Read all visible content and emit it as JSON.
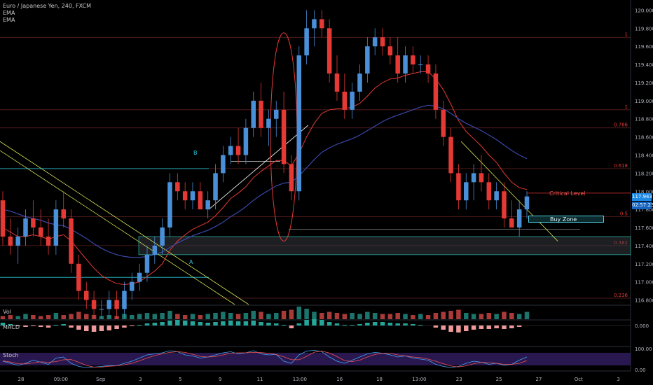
{
  "chart_data": {
    "type": "candlestick",
    "title": "Euro / Japanese Yen, 240, FXCM",
    "indicators": [
      "EMA",
      "EMA"
    ],
    "y_axis_ticks": [
      "120.000",
      "119.800",
      "119.600",
      "119.400",
      "119.200",
      "119.000",
      "118.800",
      "118.600",
      "118.400",
      "118.200",
      "118.000",
      "117.800",
      "117.600",
      "117.400",
      "117.200",
      "117.000",
      "116.800"
    ],
    "ylim": [
      116.75,
      120.05
    ],
    "x_tick_labels": [
      "28",
      "09:00",
      "Sep",
      "3",
      "5",
      "9",
      "11",
      "13:00",
      "16",
      "18",
      "13:00",
      "23",
      "25",
      "27",
      "Oct",
      "3"
    ],
    "current_price": "117.943",
    "countdown": "02:57:23",
    "fib_levels": [
      {
        "label": "1",
        "value": 119.7
      },
      {
        "label": "1",
        "value": 118.9
      },
      {
        "label": "0.786",
        "value": 118.7
      },
      {
        "label": "0.618",
        "value": 118.25
      },
      {
        "label": "0.5",
        "value": 117.72
      },
      {
        "label": "0.382",
        "value": 117.4
      },
      {
        "label": "0.236",
        "value": 116.82
      }
    ],
    "annotations": {
      "critical_level": "Critical Level",
      "buy_zone": "Buy Zone",
      "point_a": "A",
      "point_b": "B"
    },
    "panels": {
      "volume": "Vol",
      "macd": "MACD",
      "stoch": "Stoch",
      "macd_ticks": [
        "0.000"
      ],
      "stoch_ticks": [
        "100.00",
        "0.00"
      ]
    },
    "candles": [
      [
        117.9,
        118.0,
        117.4,
        117.5
      ],
      [
        117.5,
        117.7,
        117.3,
        117.4
      ],
      [
        117.4,
        117.6,
        117.2,
        117.5
      ],
      [
        117.5,
        117.8,
        117.4,
        117.7
      ],
      [
        117.7,
        117.9,
        117.5,
        117.6
      ],
      [
        117.6,
        117.8,
        117.4,
        117.5
      ],
      [
        117.5,
        117.7,
        117.3,
        117.4
      ],
      [
        117.4,
        117.9,
        117.3,
        117.8
      ],
      [
        117.8,
        118.0,
        117.6,
        117.7
      ],
      [
        117.7,
        117.8,
        117.1,
        117.2
      ],
      [
        117.2,
        117.3,
        116.8,
        116.9
      ],
      [
        116.9,
        117.0,
        116.7,
        116.8
      ],
      [
        116.8,
        116.9,
        116.6,
        116.7
      ],
      [
        116.7,
        116.8,
        116.6,
        116.7
      ],
      [
        116.7,
        116.9,
        116.6,
        116.8
      ],
      [
        116.8,
        116.9,
        116.6,
        116.7
      ],
      [
        116.7,
        117.0,
        116.6,
        116.9
      ],
      [
        116.9,
        117.1,
        116.8,
        117.0
      ],
      [
        117.0,
        117.2,
        116.9,
        117.1
      ],
      [
        117.1,
        117.4,
        117.0,
        117.3
      ],
      [
        117.3,
        117.5,
        117.2,
        117.4
      ],
      [
        117.4,
        117.7,
        117.3,
        117.6
      ],
      [
        117.6,
        118.2,
        117.5,
        118.1
      ],
      [
        118.1,
        118.2,
        117.9,
        118.0
      ],
      [
        118.0,
        118.1,
        117.8,
        117.9
      ],
      [
        117.9,
        118.1,
        117.8,
        118.0
      ],
      [
        118.0,
        118.1,
        117.8,
        117.8
      ],
      [
        117.8,
        118.0,
        117.7,
        117.9
      ],
      [
        117.9,
        118.3,
        117.8,
        118.2
      ],
      [
        118.2,
        118.5,
        118.1,
        118.4
      ],
      [
        118.4,
        118.6,
        118.3,
        118.5
      ],
      [
        118.5,
        118.7,
        118.3,
        118.4
      ],
      [
        118.4,
        118.8,
        118.3,
        118.7
      ],
      [
        118.7,
        119.1,
        118.6,
        119.0
      ],
      [
        119.0,
        119.2,
        118.6,
        118.7
      ],
      [
        118.7,
        118.9,
        118.5,
        118.8
      ],
      [
        118.8,
        119.0,
        118.6,
        118.9
      ],
      [
        118.9,
        119.1,
        118.2,
        118.3
      ],
      [
        118.3,
        118.4,
        117.9,
        118.0
      ],
      [
        118.0,
        119.6,
        117.9,
        119.5
      ],
      [
        119.5,
        120.0,
        119.4,
        119.8
      ],
      [
        119.8,
        120.0,
        119.6,
        119.9
      ],
      [
        119.9,
        120.0,
        119.7,
        119.8
      ],
      [
        119.8,
        119.9,
        119.2,
        119.3
      ],
      [
        119.3,
        119.5,
        119.0,
        119.1
      ],
      [
        119.1,
        119.3,
        118.8,
        118.9
      ],
      [
        118.9,
        119.2,
        118.8,
        119.1
      ],
      [
        119.1,
        119.4,
        119.0,
        119.3
      ],
      [
        119.3,
        119.7,
        119.2,
        119.6
      ],
      [
        119.6,
        119.8,
        119.5,
        119.7
      ],
      [
        119.7,
        119.8,
        119.5,
        119.6
      ],
      [
        119.6,
        119.7,
        119.4,
        119.5
      ],
      [
        119.5,
        119.7,
        119.2,
        119.3
      ],
      [
        119.3,
        119.6,
        119.2,
        119.5
      ],
      [
        119.5,
        119.6,
        119.3,
        119.4
      ],
      [
        119.4,
        119.5,
        119.3,
        119.4
      ],
      [
        119.4,
        119.5,
        119.2,
        119.3
      ],
      [
        119.3,
        119.4,
        118.8,
        118.9
      ],
      [
        118.9,
        119.0,
        118.5,
        118.6
      ],
      [
        118.6,
        118.7,
        118.1,
        118.2
      ],
      [
        118.2,
        118.3,
        117.8,
        117.9
      ],
      [
        117.9,
        118.2,
        117.8,
        118.1
      ],
      [
        118.1,
        118.3,
        117.9,
        118.2
      ],
      [
        118.2,
        118.4,
        118.0,
        118.1
      ],
      [
        118.1,
        118.2,
        117.8,
        117.9
      ],
      [
        117.9,
        118.1,
        117.8,
        118.0
      ],
      [
        118.0,
        118.1,
        117.6,
        117.7
      ],
      [
        117.7,
        117.9,
        117.6,
        117.6
      ],
      [
        117.6,
        117.9,
        117.5,
        117.8
      ],
      [
        117.8,
        118.0,
        117.7,
        117.943
      ]
    ],
    "ema_fast": [
      117.6,
      117.55,
      117.5,
      117.5,
      117.52,
      117.5,
      117.47,
      117.5,
      117.52,
      117.45,
      117.35,
      117.25,
      117.15,
      117.07,
      117.02,
      116.98,
      116.97,
      116.98,
      117.0,
      117.06,
      117.12,
      117.2,
      117.35,
      117.45,
      117.52,
      117.58,
      117.62,
      117.66,
      117.73,
      117.82,
      117.92,
      117.98,
      118.05,
      118.15,
      118.22,
      118.28,
      118.34,
      118.34,
      118.28,
      118.42,
      118.6,
      118.75,
      118.86,
      118.9,
      118.91,
      118.91,
      118.93,
      118.97,
      119.05,
      119.14,
      119.2,
      119.24,
      119.25,
      119.28,
      119.3,
      119.32,
      119.32,
      119.24,
      119.12,
      118.96,
      118.78,
      118.66,
      118.58,
      118.5,
      118.4,
      118.32,
      118.2,
      118.1,
      118.04,
      118.02
    ],
    "ema_slow": [
      117.8,
      117.78,
      117.75,
      117.72,
      117.7,
      117.68,
      117.65,
      117.63,
      117.62,
      117.58,
      117.53,
      117.48,
      117.42,
      117.37,
      117.33,
      117.3,
      117.28,
      117.27,
      117.27,
      117.28,
      117.3,
      117.33,
      117.38,
      117.43,
      117.47,
      117.51,
      117.54,
      117.57,
      117.61,
      117.66,
      117.72,
      117.77,
      117.83,
      117.9,
      117.96,
      118.01,
      118.06,
      118.09,
      118.1,
      118.17,
      118.26,
      118.35,
      118.43,
      118.48,
      118.52,
      118.55,
      118.58,
      118.62,
      118.67,
      118.72,
      118.77,
      118.81,
      118.84,
      118.87,
      118.9,
      118.93,
      118.95,
      118.94,
      118.91,
      118.86,
      118.8,
      118.75,
      118.71,
      118.67,
      118.62,
      118.57,
      118.51,
      118.45,
      118.4,
      118.36
    ],
    "volume": [
      3,
      4,
      3,
      5,
      4,
      3,
      4,
      6,
      4,
      5,
      7,
      5,
      4,
      3,
      4,
      3,
      5,
      4,
      5,
      6,
      5,
      6,
      8,
      5,
      4,
      5,
      4,
      5,
      6,
      7,
      6,
      5,
      6,
      8,
      7,
      5,
      6,
      8,
      9,
      12,
      10,
      7,
      6,
      7,
      6,
      5,
      6,
      5,
      7,
      6,
      5,
      5,
      6,
      5,
      4,
      5,
      4,
      6,
      7,
      8,
      9,
      6,
      5,
      5,
      6,
      5,
      7,
      6,
      5,
      7
    ],
    "macd_hist": [
      0.4,
      0.2,
      -0.1,
      -0.2,
      -0.1,
      -0.2,
      -0.3,
      0.1,
      0.2,
      -0.3,
      -0.6,
      -0.8,
      -0.9,
      -0.8,
      -0.7,
      -0.5,
      -0.3,
      -0.1,
      0.1,
      0.3,
      0.4,
      0.5,
      0.7,
      0.8,
      0.7,
      0.6,
      0.5,
      0.4,
      0.5,
      0.6,
      0.7,
      0.6,
      0.6,
      0.7,
      0.5,
      0.4,
      0.3,
      0.1,
      -0.4,
      0.3,
      0.8,
      0.9,
      0.8,
      0.5,
      0.3,
      0.1,
      0.1,
      0.2,
      0.4,
      0.5,
      0.5,
      0.4,
      0.3,
      0.3,
      0.2,
      0.1,
      0.0,
      -0.3,
      -0.6,
      -0.9,
      -1.0,
      -0.8,
      -0.6,
      -0.5,
      -0.5,
      -0.4,
      -0.5,
      -0.4,
      -0.2,
      0.0
    ],
    "stoch_k": [
      40,
      30,
      20,
      30,
      45,
      35,
      25,
      55,
      60,
      30,
      15,
      10,
      12,
      15,
      20,
      18,
      30,
      40,
      55,
      70,
      75,
      80,
      90,
      85,
      70,
      65,
      55,
      60,
      70,
      80,
      85,
      75,
      80,
      90,
      75,
      70,
      72,
      40,
      30,
      70,
      88,
      92,
      85,
      60,
      40,
      30,
      45,
      60,
      75,
      82,
      78,
      70,
      60,
      65,
      55,
      50,
      45,
      25,
      15,
      10,
      15,
      30,
      40,
      35,
      25,
      30,
      20,
      25,
      45,
      60
    ],
    "stoch_d": [
      42,
      36,
      28,
      27,
      32,
      37,
      35,
      38,
      47,
      48,
      35,
      20,
      12,
      12,
      16,
      18,
      23,
      30,
      42,
      55,
      67,
      75,
      82,
      85,
      82,
      73,
      63,
      60,
      62,
      70,
      78,
      80,
      80,
      82,
      81,
      78,
      72,
      61,
      47,
      47,
      63,
      83,
      88,
      79,
      62,
      43,
      38,
      45,
      60,
      72,
      78,
      77,
      70,
      65,
      60,
      57,
      50,
      40,
      28,
      17,
      13,
      18,
      28,
      35,
      33,
      30,
      25,
      25,
      30,
      43
    ]
  }
}
